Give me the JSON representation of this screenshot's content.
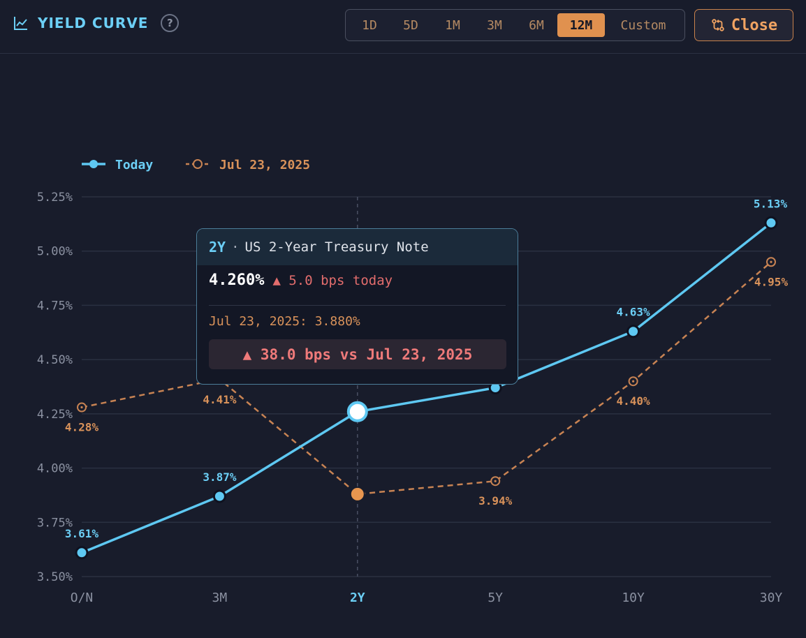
{
  "header": {
    "title": "YIELD CURVE",
    "help_label": "?",
    "ranges": [
      "1D",
      "5D",
      "1M",
      "3M",
      "6M",
      "12M",
      "Custom"
    ],
    "active_range": "12M",
    "close_label": "Close"
  },
  "colors": {
    "accent_today": "#5ec8f2",
    "accent_prior": "#e0914f",
    "background": "#181c2b",
    "negative": "#e36d6d"
  },
  "tooltip": {
    "tenor": "2Y",
    "dot": "·",
    "name": "US 2-Year Treasury Note",
    "value": "4.260%",
    "change": "▲ 5.0 bps today",
    "prior": "Jul 23, 2025: 3.880%",
    "diff": "▲ 38.0 bps vs Jul 23, 2025"
  },
  "chart_data": {
    "type": "line",
    "categories": [
      "O/N",
      "3M",
      "2Y",
      "5Y",
      "10Y",
      "30Y"
    ],
    "series": [
      {
        "name": "Today",
        "values": [
          3.61,
          3.87,
          4.26,
          4.37,
          4.63,
          5.13
        ],
        "style": "solid",
        "color": "#5ec8f2",
        "labels": [
          "3.61%",
          "3.87%",
          "",
          "",
          "4.63%",
          "5.13%"
        ]
      },
      {
        "name": "Jul 23, 2025",
        "values": [
          4.28,
          4.41,
          3.88,
          3.94,
          4.4,
          4.95
        ],
        "style": "dashed",
        "color": "#c88353",
        "labels": [
          "4.28%",
          "4.41%",
          "",
          "3.94%",
          "4.40%",
          "4.95%"
        ]
      }
    ],
    "yticks": [
      "5.25%",
      "5.00%",
      "4.75%",
      "4.50%",
      "4.25%",
      "4.00%",
      "3.75%",
      "3.50%"
    ],
    "ylim": [
      3.5,
      5.25
    ],
    "grid": true,
    "legend": "top-left",
    "highlight_category": "2Y"
  }
}
